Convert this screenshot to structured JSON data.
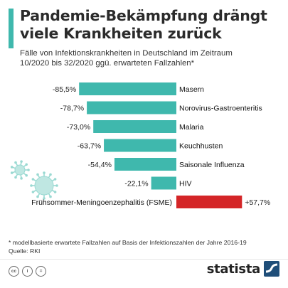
{
  "title_line1": "Pandemie-Bekämpfung drängt",
  "title_line2": "viele Krankheiten zurück",
  "subtitle_line1": "Fälle von Infektionskrankheiten in Deutschland im Zeitraum",
  "subtitle_line2": "10/2020 bis 32/2020 ggü. erwarteten Fallzahlen*",
  "footnote": "* modellbasierte erwartete Fallzahlen auf Basis der Infektionszahlen der Jahre 2016-19",
  "source": "Quelle: RKI",
  "brand": "statista",
  "colors": {
    "accent": "#3fb8ad",
    "negative": "#3fb8ad",
    "positive": "#d42527"
  },
  "icons": [
    "creative-commons-icon",
    "attribution-icon",
    "equal-icon",
    "virus-icon",
    "statista-logo-icon"
  ],
  "chart_data": {
    "type": "bar",
    "orientation": "horizontal",
    "categories": [
      "Masern",
      "Norovirus-Gastroenteritis",
      "Malaria",
      "Keuchhusten",
      "Saisonale Influenza",
      "HIV",
      "Frühsommer-Meningoenzephalitis (FSME)"
    ],
    "values": [
      -85.5,
      -78.7,
      -73.0,
      -63.7,
      -54.4,
      -22.1,
      57.7
    ],
    "value_labels": [
      "-85,5%",
      "-78,7%",
      "-73,0%",
      "-63,7%",
      "-54,4%",
      "-22,1%",
      "+57,7%"
    ],
    "unit": "%",
    "xlim": [
      -100,
      100
    ],
    "grid": false,
    "legend": "none"
  }
}
